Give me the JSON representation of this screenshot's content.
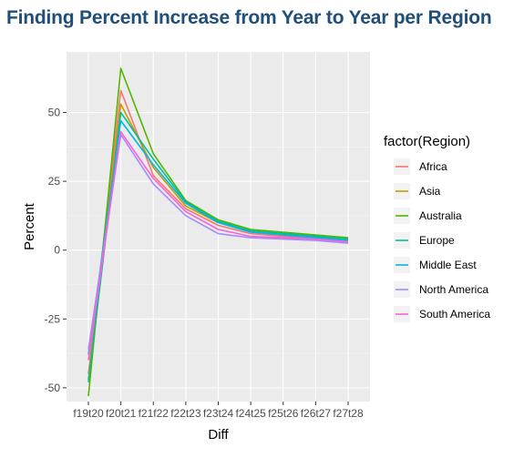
{
  "chart_data": {
    "type": "line",
    "title": "Finding Percent Increase from Year to Year per Region",
    "xlabel": "Diff",
    "ylabel": "Percent",
    "categories": [
      "f19t20",
      "f20t21",
      "f21f22",
      "f22t23",
      "f23t24",
      "f24t25",
      "f25t26",
      "f26t27",
      "f27t28"
    ],
    "y_ticks": [
      -50,
      -25,
      0,
      25,
      50
    ],
    "ylim": [
      -55,
      72
    ],
    "grid": true,
    "legend_title": "factor(Region)",
    "legend_position": "right",
    "series": [
      {
        "name": "Africa",
        "color": "#F8766D",
        "values": [
          -45,
          58,
          27,
          15,
          9,
          6,
          5,
          4,
          3.5
        ]
      },
      {
        "name": "Asia",
        "color": "#C49A00",
        "values": [
          -47,
          53,
          30,
          16,
          10,
          7,
          6,
          5,
          4
        ]
      },
      {
        "name": "Australia",
        "color": "#53B400",
        "values": [
          -53,
          66,
          35,
          18,
          11,
          7.5,
          6.5,
          5.5,
          4.5
        ]
      },
      {
        "name": "Europe",
        "color": "#00C094",
        "values": [
          -48,
          50,
          33,
          17.5,
          10.5,
          7,
          6,
          5,
          4
        ]
      },
      {
        "name": "Middle East",
        "color": "#00B6EB",
        "values": [
          -38,
          47,
          31,
          17,
          10,
          6.5,
          5.5,
          4.5,
          3.5
        ]
      },
      {
        "name": "North America",
        "color": "#A58AFF",
        "values": [
          -36,
          42,
          24,
          12.5,
          6,
          4.5,
          4,
          3.5,
          2.5
        ]
      },
      {
        "name": "South America",
        "color": "#FB61D7",
        "values": [
          -40,
          43,
          26,
          14,
          7.5,
          5,
          4.5,
          4,
          3
        ]
      }
    ]
  }
}
